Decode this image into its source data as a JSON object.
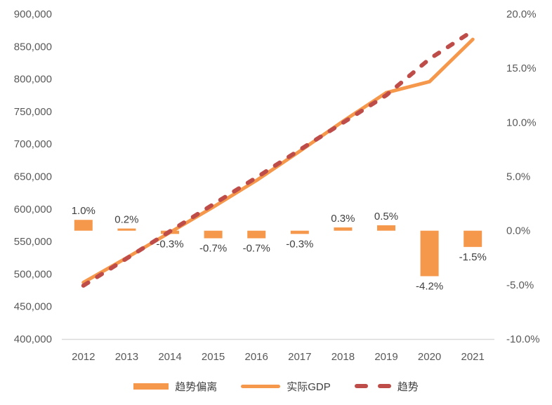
{
  "chart_data": {
    "type": "combo",
    "title": "",
    "categories": [
      "2012",
      "2013",
      "2014",
      "2015",
      "2016",
      "2017",
      "2018",
      "2019",
      "2020",
      "2021"
    ],
    "series": [
      {
        "name": "趋势偏离",
        "type": "bar",
        "axis": "right",
        "unit": "%",
        "values": [
          1.0,
          0.2,
          -0.3,
          -0.7,
          -0.7,
          -0.3,
          0.3,
          0.5,
          -4.2,
          -1.5
        ],
        "labels": [
          "1.0%",
          "0.2%",
          "-0.3%",
          "-0.7%",
          "-0.7%",
          "-0.3%",
          "0.3%",
          "0.5%",
          "-4.2%",
          "-1.5%"
        ],
        "color": "#F6984B"
      },
      {
        "name": "实际GDP",
        "type": "line",
        "axis": "left",
        "values": [
          487000,
          525000,
          564000,
          603000,
          644000,
          689000,
          735000,
          779000,
          796000,
          861000
        ],
        "color": "#F6984B"
      },
      {
        "name": "趋势",
        "type": "dashed-line",
        "axis": "left",
        "values": [
          482200,
          524000,
          565700,
          607200,
          648500,
          691100,
          732800,
          775100,
          830900,
          874100
        ],
        "color": "#BE4C48"
      }
    ],
    "left_axis": {
      "min": 400000,
      "max": 900000,
      "step": 50000,
      "ticks": [
        "400,000",
        "450,000",
        "500,000",
        "550,000",
        "600,000",
        "650,000",
        "700,000",
        "750,000",
        "800,000",
        "850,000",
        "900,000"
      ]
    },
    "right_axis": {
      "min": -10,
      "max": 20,
      "step": 5,
      "ticks": [
        "-10.0%",
        "-5.0%",
        "0.0%",
        "5.0%",
        "10.0%",
        "15.0%",
        "20.0%"
      ]
    },
    "legend": {
      "position": "bottom",
      "entries": [
        {
          "label": "趋势偏离",
          "type": "bar"
        },
        {
          "label": "实际GDP",
          "type": "line"
        },
        {
          "label": "趋势",
          "type": "dashed"
        }
      ]
    },
    "grid": false
  },
  "colors": {
    "orange": "#F6984B",
    "dark_red": "#BE4C48",
    "axis_text": "#595959",
    "label_text": "#3F3F3F",
    "axis_line": "#D9D9D9",
    "background": "#FFFFFF"
  }
}
